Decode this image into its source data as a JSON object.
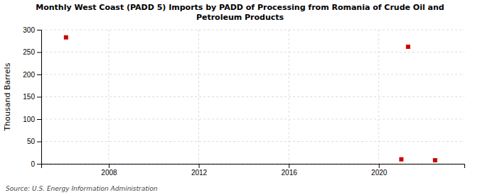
{
  "chart_data": {
    "type": "scatter",
    "title": "Monthly West Coast (PADD 5) Imports by PADD of Processing from Romania of Crude Oil and\nPetroleum Products",
    "ylabel": "Thousand Barrels",
    "source": "Source: U.S. Energy Information Administration",
    "x": [
      2006.1,
      2021.3,
      2021.0,
      2022.5
    ],
    "values": [
      283,
      262,
      10,
      8
    ],
    "color": "#cc0000",
    "marker": "square",
    "xlim": [
      2005.0,
      2023.8
    ],
    "ylim": [
      0,
      300
    ],
    "xticks": [
      2008,
      2012,
      2016,
      2020
    ],
    "yticks": [
      0,
      50,
      100,
      150,
      200,
      250,
      300
    ],
    "grid": true
  }
}
